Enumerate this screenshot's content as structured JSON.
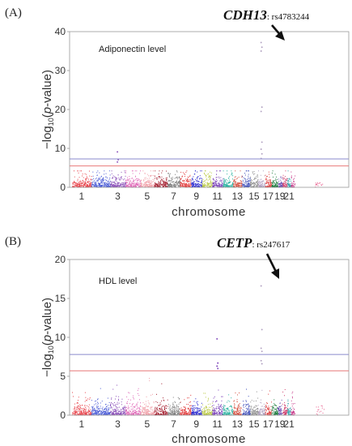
{
  "chart_data": [
    {
      "type": "scatter",
      "panel_label": "(A)",
      "title": "Adiponectin level",
      "xlabel": "chromosome",
      "ylabel_parts": [
        "−log",
        "10",
        "(",
        "p",
        "-value)"
      ],
      "ylim": [
        0,
        40
      ],
      "yticks": [
        "0",
        "10",
        "20",
        "30",
        "40"
      ],
      "x_tick_labels": [
        "1",
        "3",
        "5",
        "7",
        "9",
        "11",
        "13",
        "15",
        "17",
        "19",
        "21"
      ],
      "threshold_lines": [
        {
          "y": 7.3,
          "color": "#8a8acd"
        },
        {
          "y": 5.5,
          "color": "#e87a7a"
        }
      ],
      "annotation": {
        "gene": "CDH13",
        "snp": ": rs4783244",
        "chromosome": 16
      },
      "peaks": [
        {
          "chromosome": 16,
          "values": [
            37.2,
            36.0,
            35.0,
            20.6,
            19.5,
            11.6,
            9.8,
            8.6,
            7.4
          ]
        },
        {
          "chromosome": 3,
          "values": [
            9.1,
            7.1,
            6.5
          ]
        }
      ]
    },
    {
      "type": "scatter",
      "panel_label": "(B)",
      "title": "HDL level",
      "xlabel": "chromosome",
      "ylabel_parts": [
        "−log",
        "10",
        "(",
        "p",
        "-value)"
      ],
      "ylim": [
        0,
        20
      ],
      "yticks": [
        "0",
        "5",
        "10",
        "15",
        "20"
      ],
      "x_tick_labels": [
        "1",
        "3",
        "5",
        "7",
        "9",
        "11",
        "13",
        "15",
        "17",
        "19",
        "21"
      ],
      "threshold_lines": [
        {
          "y": 7.8,
          "color": "#8a8acd"
        },
        {
          "y": 5.7,
          "color": "#e87a7a"
        }
      ],
      "annotation": {
        "gene": "CETP",
        "snp": ": rs247617",
        "chromosome": 16
      },
      "peaks": [
        {
          "chromosome": 16,
          "values": [
            16.6,
            11.0,
            8.6,
            8.2,
            7.0,
            6.6
          ]
        },
        {
          "chromosome": 11,
          "values": [
            9.8,
            6.7,
            6.3,
            6.0
          ]
        }
      ]
    }
  ],
  "chromosome_colors": [
    "#e8454d",
    "#4a5bd6",
    "#8a4fb8",
    "#e06ab8",
    "#f0a0a8",
    "#a52030",
    "#7b7b7b",
    "#e23a3a",
    "#2a2ad0",
    "#b8c840",
    "#7a40b8",
    "#28b2a0",
    "#d44a3a",
    "#3a4ab8",
    "#8a8a8a",
    "#b0a0c0",
    "#e04040",
    "#1a7a3a",
    "#6a4ab0",
    "#d03a6a",
    "#2aa0a8",
    "#c83a8a"
  ],
  "chromosome_sizes": [
    248,
    242,
    198,
    190,
    181,
    171,
    159,
    145,
    138,
    134,
    135,
    133,
    114,
    107,
    102,
    90,
    83,
    80,
    59,
    64,
    47,
    51
  ]
}
